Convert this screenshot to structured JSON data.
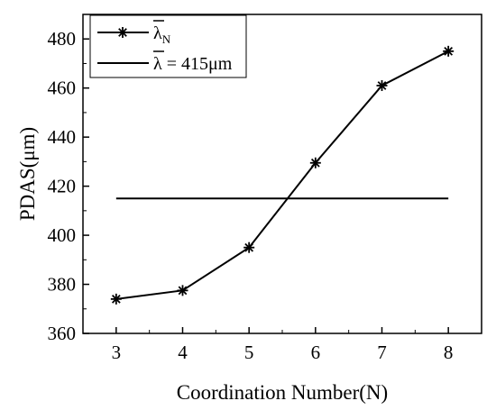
{
  "chart_data": {
    "type": "line",
    "xlabel": "Coordination Number(N)",
    "ylabel": "PDAS(μm)",
    "xlim": [
      2.5,
      8.5
    ],
    "ylim": [
      360,
      490
    ],
    "xticks": [
      3,
      4,
      5,
      6,
      7,
      8
    ],
    "yticks": [
      360,
      380,
      400,
      420,
      440,
      460,
      480
    ],
    "grid": false,
    "legend_position": "top-left",
    "series": [
      {
        "name_base": "λ",
        "name_sub": "N",
        "marker": "asterisk",
        "x": [
          3,
          4,
          5,
          6,
          7,
          8
        ],
        "y": [
          374,
          377.5,
          395,
          429.5,
          461,
          475
        ]
      },
      {
        "name": "λ = 415μm",
        "name_base": "λ",
        "name_rest": " = 415μm",
        "x": [
          3,
          8
        ],
        "y": [
          415,
          415
        ]
      }
    ]
  }
}
